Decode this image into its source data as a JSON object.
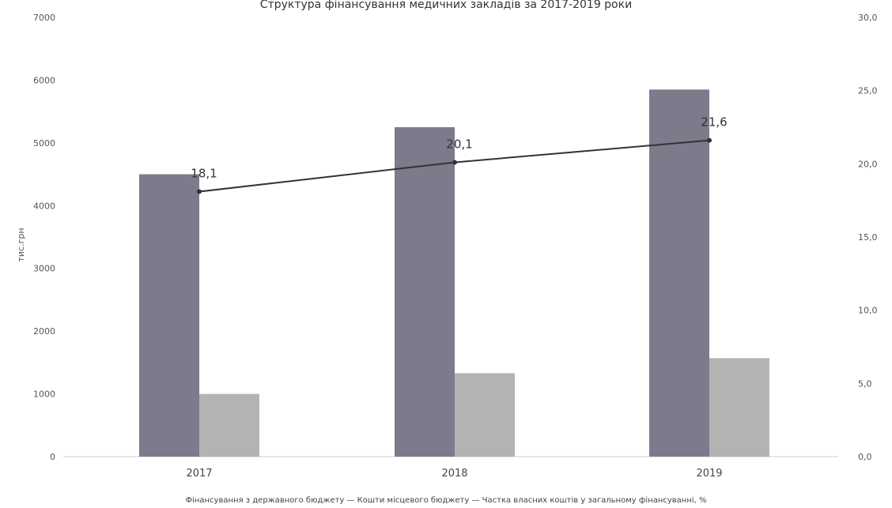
{
  "chart_data": {
    "type": "bar",
    "title": "Структура фінансування медичних закладів за 2017-2019 роки",
    "categories": [
      "2017",
      "2018",
      "2019"
    ],
    "ylabel": "тис.грн",
    "ylim": [
      0,
      7000
    ],
    "yticks": [
      "0",
      "1000",
      "2000",
      "3000",
      "4000",
      "5000",
      "6000",
      "7000"
    ],
    "y2lim": [
      0,
      30
    ],
    "y2ticks": [
      "0,0",
      "5,0",
      "10,0",
      "15,0",
      "20,0",
      "25,0",
      "30,0"
    ],
    "series": [
      {
        "name": "Фінансування з державного бюджету",
        "kind": "bar",
        "axis": "left",
        "color": "#7d7a8c",
        "values": [
          4500,
          5250,
          5850
        ]
      },
      {
        "name": "Кошти місцевого бюджету",
        "kind": "bar",
        "axis": "left",
        "color": "#b3b3b3",
        "values": [
          1000,
          1330,
          1570
        ]
      },
      {
        "name": "Частка власних коштів у загальному фінансуванні, %",
        "kind": "line",
        "axis": "right",
        "color": "#333333",
        "values": [
          18.1,
          20.1,
          21.6
        ],
        "labels": [
          "18,1",
          "20,1",
          "21,6"
        ]
      }
    ],
    "legend_text": "Фінансування з державного бюджету — Кошти місцевого бюджету — Частка власних коштів у загальному фінансуванні, %",
    "legend_position": "bottom",
    "grid": false
  }
}
